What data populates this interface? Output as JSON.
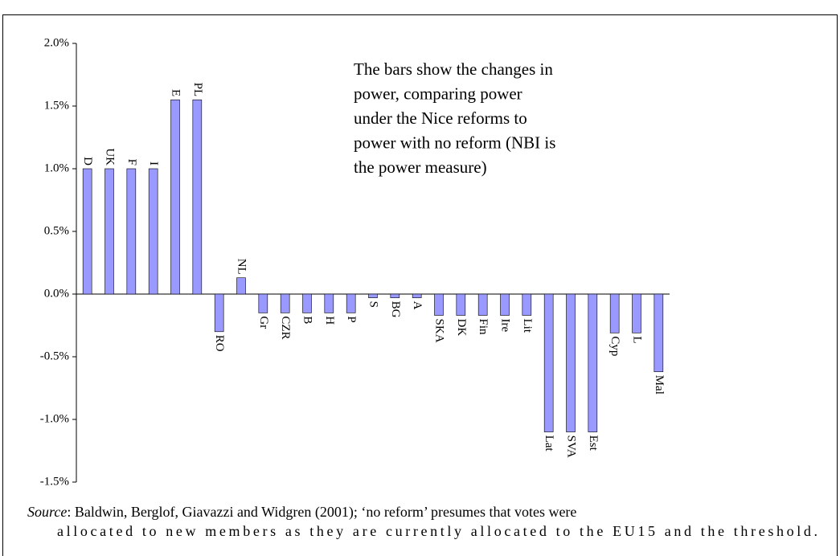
{
  "chart_data": {
    "type": "bar",
    "annotation_lines": [
      "The bars show the changes in",
      "power, comparing power",
      "under the Nice reforms to",
      "power with no reform (NBI is",
      "the power measure)"
    ],
    "categories": [
      "D",
      "UK",
      "F",
      "I",
      "E",
      "PL",
      "RO",
      "NL",
      "Gr",
      "CZR",
      "B",
      "H",
      "P",
      "S",
      "BG",
      "A",
      "SKA",
      "DK",
      "Fin",
      "Ire",
      "Lit",
      "Lat",
      "SVA",
      "Est",
      "Cyp",
      "L",
      "Mal"
    ],
    "values": [
      1.0,
      1.0,
      1.0,
      1.0,
      1.55,
      1.55,
      -0.3,
      0.13,
      -0.15,
      -0.15,
      -0.15,
      -0.15,
      -0.15,
      -0.03,
      -0.03,
      -0.03,
      -0.17,
      -0.17,
      -0.17,
      -0.17,
      -0.17,
      -1.1,
      -1.1,
      -1.1,
      -0.31,
      -0.31,
      -0.62
    ],
    "color": "#9999ff",
    "ylim": [
      -1.5,
      2.0
    ],
    "yticks": [
      {
        "value": -1.5,
        "label": "-1.5%"
      },
      {
        "value": -1.0,
        "label": "-1.0%"
      },
      {
        "value": -0.5,
        "label": "-0.5%"
      },
      {
        "value": 0,
        "label": "0.0%"
      },
      {
        "value": 0.5,
        "label": "0.5%"
      },
      {
        "value": 1.0,
        "label": "1.0%"
      },
      {
        "value": 1.5,
        "label": "1.5%"
      },
      {
        "value": 2.0,
        "label": "2.0%"
      }
    ],
    "source_label": "Source",
    "source_lines": [
      ": Baldwin, Berglof, Giavazzi and Widgren (2001); ‘no reform’ presumes that votes were",
      "allocated to new members as they are currently allocated to the EU15 and the threshold."
    ]
  }
}
